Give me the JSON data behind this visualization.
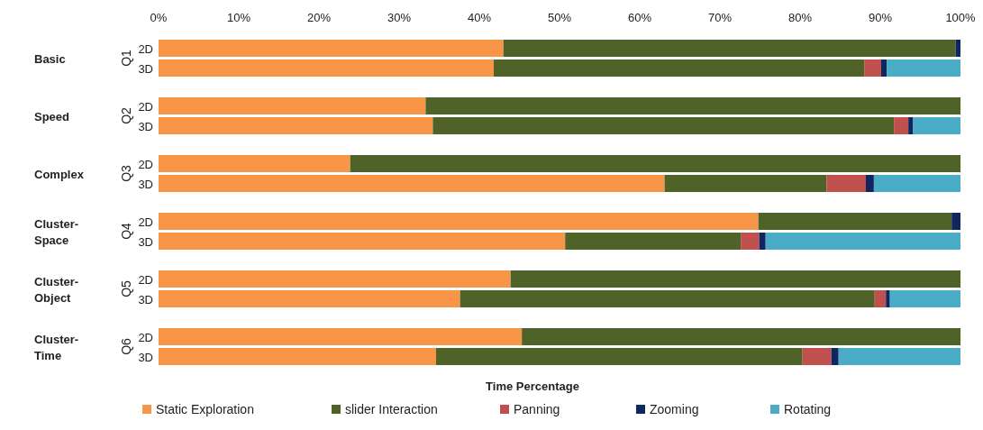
{
  "chart_data": {
    "type": "bar",
    "orientation": "horizontal",
    "stacked": true,
    "xlabel": "Time Percentage",
    "legend": "bottom",
    "categories": [
      "2D",
      "3D",
      "2D",
      "3D",
      "2D",
      "3D",
      "2D",
      "3D",
      "2D",
      "3D",
      "2D",
      "3D"
    ],
    "xlim": [
      0,
      100
    ],
    "xticks": [
      {
        "value": 0,
        "label": "0%"
      },
      {
        "value": 10,
        "label": "10%"
      },
      {
        "value": 20,
        "label": "20%"
      },
      {
        "value": 30,
        "label": "30%"
      },
      {
        "value": 40,
        "label": "40%"
      },
      {
        "value": 50,
        "label": "50%"
      },
      {
        "value": 60,
        "label": "60%"
      },
      {
        "value": 70,
        "label": "70%"
      },
      {
        "value": 80,
        "label": "80%"
      },
      {
        "value": 90,
        "label": "90%"
      },
      {
        "value": 100,
        "label": "100%"
      }
    ],
    "annotations": [
      "Basic",
      "Q1",
      "Speed",
      "Q2",
      "Complex",
      "Q3",
      "Cluster-Space",
      "Q4",
      "Cluster-Object",
      "Q5",
      "Cluster-Time",
      "Q6"
    ],
    "series": [
      {
        "name": "Static Exploration",
        "color": "#f79646",
        "values": [
          43.0,
          41.8,
          33.3,
          34.2,
          23.9,
          63.1,
          74.8,
          50.7,
          43.9,
          37.6,
          45.3,
          34.6
        ]
      },
      {
        "name": "slider Interaction",
        "color": "#4f6228",
        "values": [
          56.4,
          46.2,
          66.7,
          57.5,
          76.1,
          20.2,
          24.1,
          21.9,
          56.1,
          51.7,
          54.7,
          45.7
        ]
      },
      {
        "name": "Panning",
        "color": "#c0504d",
        "values": [
          0,
          2.1,
          0,
          1.8,
          0,
          4.9,
          0,
          2.3,
          0,
          1.4,
          0,
          3.6
        ]
      },
      {
        "name": "Zooming",
        "color": "#10265e",
        "values": [
          0.6,
          0.7,
          0,
          0.6,
          0,
          1.0,
          1.1,
          0.8,
          0,
          0.5,
          0,
          0.9
        ]
      },
      {
        "name": "Rotating",
        "color": "#4bacc6",
        "values": [
          0,
          9.2,
          0,
          5.9,
          0,
          10.8,
          0,
          24.3,
          0,
          8.8,
          0,
          15.2
        ]
      }
    ]
  }
}
